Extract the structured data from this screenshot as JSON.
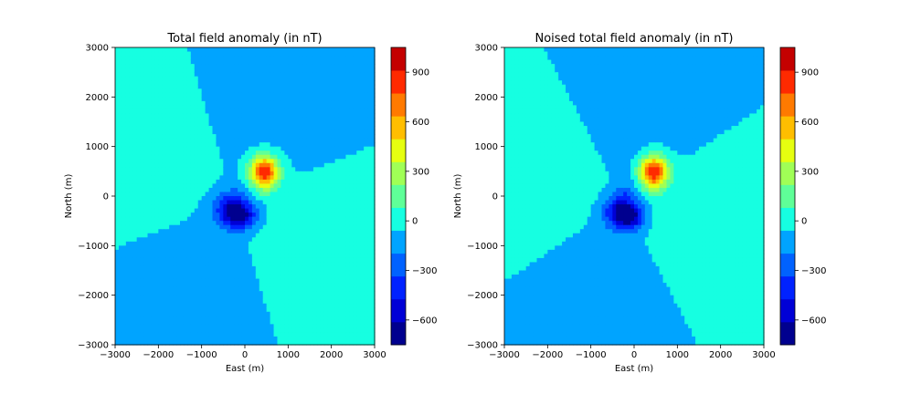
{
  "colors": {
    "levels": [
      "#00008f",
      "#0000d6",
      "#0022ff",
      "#0062ff",
      "#00a4ff",
      "#16ffe1",
      "#5fff98",
      "#a0ff56",
      "#e6ff10",
      "#ffbe00",
      "#ff7a00",
      "#ff2a00",
      "#c40000"
    ],
    "background": "#16ffe1",
    "positive_background": "#5fff98"
  },
  "chart_data": [
    {
      "type": "heatmap",
      "title": "Total field anomaly (in nT)",
      "xlabel": "East (m)",
      "ylabel": "North (m)",
      "xlim": [
        -3000,
        3000
      ],
      "ylim": [
        -3000,
        3000
      ],
      "xticks": [
        -3000,
        -2000,
        -1000,
        0,
        1000,
        2000,
        3000
      ],
      "yticks": [
        -3000,
        -2000,
        -1000,
        0,
        1000,
        2000,
        3000
      ],
      "colorbar": {
        "range": [
          -750,
          1050
        ],
        "step": 150,
        "ticks": [
          -600,
          -300,
          0,
          300,
          600,
          900
        ],
        "tick_labels": [
          "−600",
          "−300",
          "0",
          "300",
          "600",
          "900"
        ]
      },
      "peak": {
        "x": 450,
        "y": 500,
        "value": 1000
      },
      "trough": {
        "x": -150,
        "y": -400,
        "value": -700
      }
    },
    {
      "type": "heatmap",
      "title": "Noised total field anomaly (in nT)",
      "xlabel": "East (m)",
      "ylabel": "North (m)",
      "xlim": [
        -3000,
        3000
      ],
      "ylim": [
        -3000,
        3000
      ],
      "xticks": [
        -3000,
        -2000,
        -1000,
        0,
        1000,
        2000,
        3000
      ],
      "yticks": [
        -3000,
        -2000,
        -1000,
        0,
        1000,
        2000,
        3000
      ],
      "colorbar": {
        "range": [
          -750,
          1050
        ],
        "step": 150,
        "ticks": [
          -600,
          -300,
          0,
          300,
          600,
          900
        ],
        "tick_labels": [
          "−600",
          "−300",
          "0",
          "300",
          "600",
          "900"
        ]
      },
      "peak": {
        "x": 450,
        "y": 500,
        "value": 1000
      },
      "trough": {
        "x": -150,
        "y": -400,
        "value": -700
      }
    }
  ]
}
